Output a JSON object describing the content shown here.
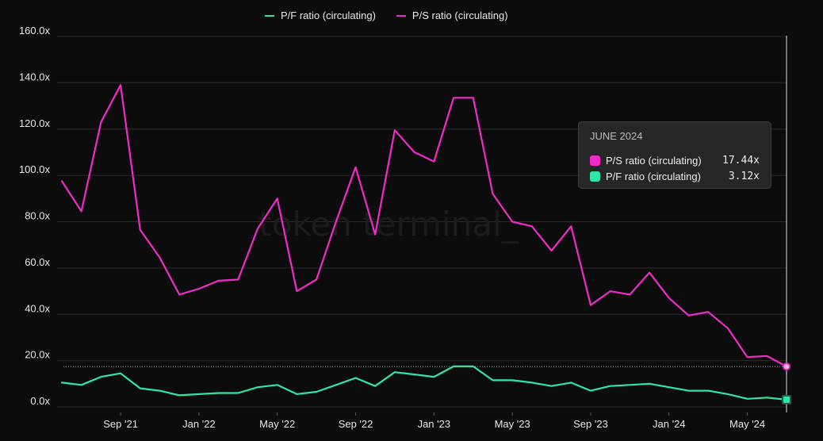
{
  "legend": {
    "items": [
      {
        "label": "P/F ratio (circulating)",
        "color": "#2ee6a6"
      },
      {
        "label": "P/S ratio (circulating)",
        "color": "#f02bc8"
      }
    ]
  },
  "watermark": "token terminal_",
  "tooltip": {
    "title": "JUNE 2024",
    "rows": [
      {
        "label": "P/S ratio (circulating)",
        "value": "17.44x",
        "color": "#f02bc8"
      },
      {
        "label": "P/F ratio (circulating)",
        "value": "3.12x",
        "color": "#2ee6a6"
      }
    ]
  },
  "chart_data": {
    "type": "line",
    "ylim": [
      0,
      160
    ],
    "y_ticks": [
      0,
      20,
      40,
      60,
      80,
      100,
      120,
      140,
      160
    ],
    "y_tick_labels": [
      "0.0x",
      "20.0x",
      "40.0x",
      "60.0x",
      "80.0x",
      "100.0x",
      "120.0x",
      "140.0x",
      "160.0x"
    ],
    "x_tick_labels": [
      "Sep '21",
      "Jan '22",
      "May '22",
      "Sep '22",
      "Jan '23",
      "May '23",
      "Sep '23",
      "Jan '24",
      "May '24"
    ],
    "grid": true,
    "legend_position": "top",
    "series": [
      {
        "name": "P/S ratio (circulating)",
        "color": "#f02bc8",
        "values": [
          97.5,
          84.5,
          123,
          139,
          76.5,
          64.5,
          48.5,
          51,
          54.5,
          55,
          77,
          90,
          50,
          55,
          80,
          103.5,
          74.5,
          119.5,
          110,
          106,
          133.5,
          133.5,
          92,
          80,
          78,
          67.5,
          78,
          44,
          50,
          48.5,
          58,
          47,
          39.5,
          41,
          34,
          21.5,
          22,
          17.44
        ]
      },
      {
        "name": "P/F ratio (circulating)",
        "color": "#2ee6a6",
        "values": [
          10.5,
          9.5,
          13,
          14.5,
          8,
          7,
          5,
          5.5,
          6,
          6,
          8.5,
          9.5,
          5.5,
          6.5,
          9.5,
          12.5,
          9,
          15,
          14,
          13,
          17.5,
          17.5,
          11.5,
          11.5,
          10.5,
          9,
          10.5,
          7,
          9,
          9.5,
          10,
          8.5,
          7,
          7,
          5.5,
          3.5,
          4,
          3.12
        ]
      }
    ]
  }
}
